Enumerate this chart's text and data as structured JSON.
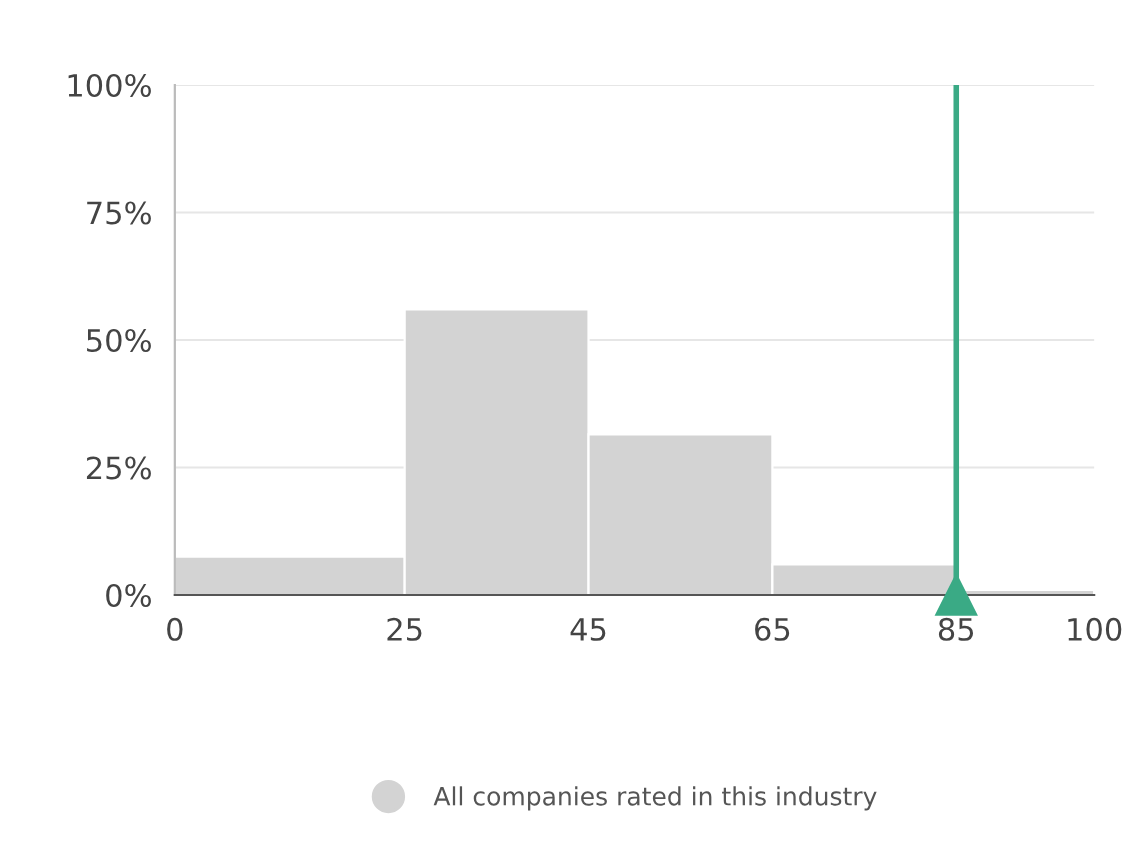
{
  "chart_data": {
    "type": "histogram",
    "bins": [
      0,
      25,
      45,
      65,
      85,
      100
    ],
    "series": [
      {
        "name": "All companies rated in this industry",
        "color": "#d3d3d3",
        "values": [
          7.5,
          56,
          31.5,
          6,
          1
        ]
      }
    ],
    "xlim": [
      0,
      100
    ],
    "xticks": [
      0,
      25,
      45,
      65,
      85,
      100
    ],
    "ylim": [
      0,
      100
    ],
    "yticks": [
      {
        "value": 0,
        "label": "0%"
      },
      {
        "value": 25,
        "label": "25%"
      },
      {
        "value": 50,
        "label": "50%"
      },
      {
        "value": 75,
        "label": "75%"
      },
      {
        "value": 100,
        "label": "100%"
      }
    ],
    "grid": "y",
    "legend": "bottom",
    "ref_lines": [
      {
        "axis": "x",
        "value": 85,
        "color": "#3aaa85"
      }
    ]
  }
}
